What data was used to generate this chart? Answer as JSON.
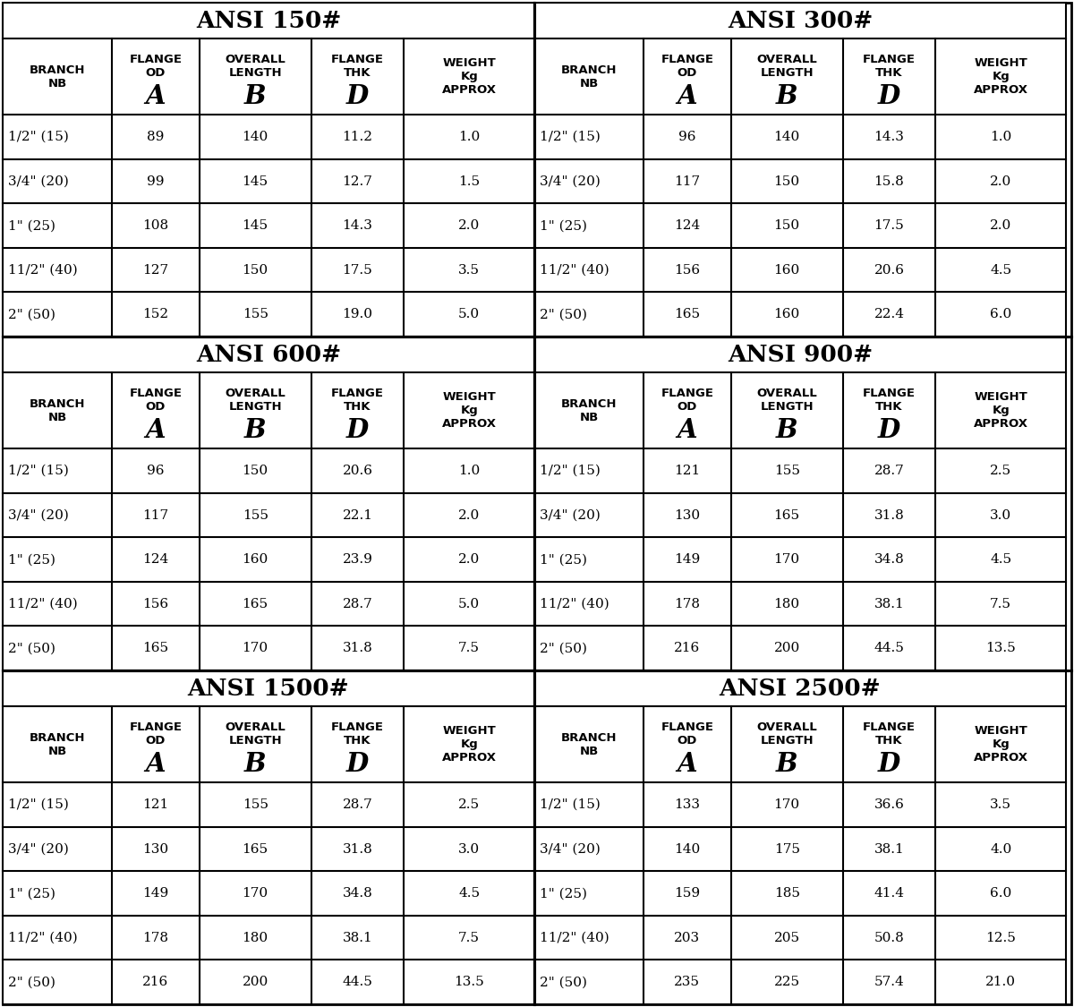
{
  "tables": [
    {
      "title": "ANSI 150#",
      "rows": [
        [
          "1/2\" (15)",
          "89",
          "140",
          "11.2",
          "1.0"
        ],
        [
          "3/4\" (20)",
          "99",
          "145",
          "12.7",
          "1.5"
        ],
        [
          "1\" (25)",
          "108",
          "145",
          "14.3",
          "2.0"
        ],
        [
          "11/2\" (40)",
          "127",
          "150",
          "17.5",
          "3.5"
        ],
        [
          "2\" (50)",
          "152",
          "155",
          "19.0",
          "5.0"
        ]
      ]
    },
    {
      "title": "ANSI 300#",
      "rows": [
        [
          "1/2\" (15)",
          "96",
          "140",
          "14.3",
          "1.0"
        ],
        [
          "3/4\" (20)",
          "117",
          "150",
          "15.8",
          "2.0"
        ],
        [
          "1\" (25)",
          "124",
          "150",
          "17.5",
          "2.0"
        ],
        [
          "11/2\" (40)",
          "156",
          "160",
          "20.6",
          "4.5"
        ],
        [
          "2\" (50)",
          "165",
          "160",
          "22.4",
          "6.0"
        ]
      ]
    },
    {
      "title": "ANSI 600#",
      "rows": [
        [
          "1/2\" (15)",
          "96",
          "150",
          "20.6",
          "1.0"
        ],
        [
          "3/4\" (20)",
          "117",
          "155",
          "22.1",
          "2.0"
        ],
        [
          "1\" (25)",
          "124",
          "160",
          "23.9",
          "2.0"
        ],
        [
          "11/2\" (40)",
          "156",
          "165",
          "28.7",
          "5.0"
        ],
        [
          "2\" (50)",
          "165",
          "170",
          "31.8",
          "7.5"
        ]
      ]
    },
    {
      "title": "ANSI 900#",
      "rows": [
        [
          "1/2\" (15)",
          "121",
          "155",
          "28.7",
          "2.5"
        ],
        [
          "3/4\" (20)",
          "130",
          "165",
          "31.8",
          "3.0"
        ],
        [
          "1\" (25)",
          "149",
          "170",
          "34.8",
          "4.5"
        ],
        [
          "11/2\" (40)",
          "178",
          "180",
          "38.1",
          "7.5"
        ],
        [
          "2\" (50)",
          "216",
          "200",
          "44.5",
          "13.5"
        ]
      ]
    },
    {
      "title": "ANSI 1500#",
      "rows": [
        [
          "1/2\" (15)",
          "121",
          "155",
          "28.7",
          "2.5"
        ],
        [
          "3/4\" (20)",
          "130",
          "165",
          "31.8",
          "3.0"
        ],
        [
          "1\" (25)",
          "149",
          "170",
          "34.8",
          "4.5"
        ],
        [
          "11/2\" (40)",
          "178",
          "180",
          "38.1",
          "7.5"
        ],
        [
          "2\" (50)",
          "216",
          "200",
          "44.5",
          "13.5"
        ]
      ]
    },
    {
      "title": "ANSI 2500#",
      "rows": [
        [
          "1/2\" (15)",
          "133",
          "170",
          "36.6",
          "3.5"
        ],
        [
          "3/4\" (20)",
          "140",
          "175",
          "38.1",
          "4.0"
        ],
        [
          "1\" (25)",
          "159",
          "185",
          "41.4",
          "6.0"
        ],
        [
          "11/2\" (40)",
          "203",
          "205",
          "50.8",
          "12.5"
        ],
        [
          "2\" (50)",
          "235",
          "225",
          "57.4",
          "21.0"
        ]
      ]
    }
  ],
  "col_props": [
    0.205,
    0.165,
    0.21,
    0.175,
    0.245
  ],
  "background_color": "#ffffff",
  "border_color": "#000000",
  "title_fontsize": 19,
  "header_fontsize": 9.5,
  "data_fontsize": 11,
  "letter_fontsize": 21,
  "lw": 1.5
}
